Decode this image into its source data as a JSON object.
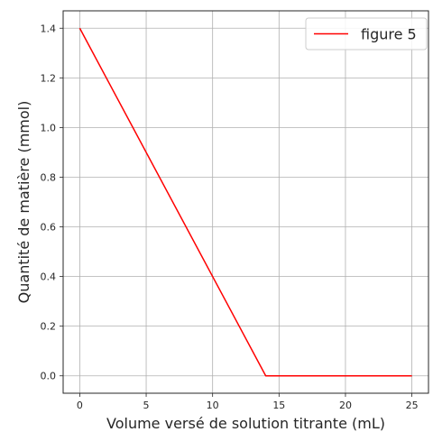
{
  "chart_data": {
    "type": "line",
    "title": "",
    "xlabel": "Volume versé de solution titrante (mL)",
    "ylabel": "Quantité de matière (mmol)",
    "xlim": [
      -1.25,
      26.25
    ],
    "ylim": [
      -0.07,
      1.47
    ],
    "xticks": [
      0,
      5,
      10,
      15,
      20,
      25
    ],
    "xtick_labels": [
      "0",
      "5",
      "10",
      "15",
      "20",
      "25"
    ],
    "yticks": [
      0.0,
      0.2,
      0.4,
      0.6,
      0.8,
      1.0,
      1.2,
      1.4
    ],
    "ytick_labels": [
      "0.0",
      "0.2",
      "0.4",
      "0.6",
      "0.8",
      "1.0",
      "1.2",
      "1.4"
    ],
    "grid": true,
    "legend_position": "top-right",
    "series": [
      {
        "name": "figure 5",
        "color": "#ff0000",
        "x": [
          0,
          14,
          25
        ],
        "y": [
          1.4,
          0.0,
          0.0
        ]
      }
    ]
  }
}
